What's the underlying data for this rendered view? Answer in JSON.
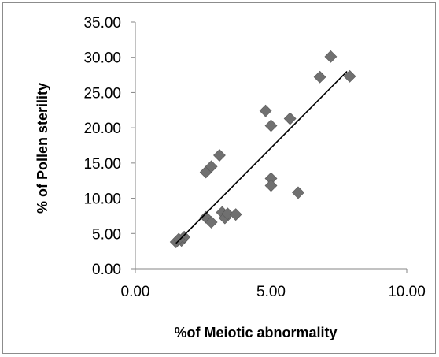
{
  "chart_data": {
    "type": "scatter",
    "title": "",
    "xlabel": "%of Meiotic abnormality",
    "ylabel": "% of Pollen sterility",
    "xlim": [
      0,
      10
    ],
    "ylim": [
      0,
      35
    ],
    "xticks": [
      "0.00",
      "5.00",
      "10.00"
    ],
    "yticks": [
      "0.00",
      "5.00",
      "10.00",
      "15.00",
      "20.00",
      "25.00",
      "30.00",
      "35.00"
    ],
    "grid": false,
    "legend": "none",
    "marker": "diamond",
    "marker_color": "#707070",
    "trendline": {
      "type": "linear",
      "x": [
        1.5,
        7.8
      ],
      "y": [
        3.6,
        28.0
      ],
      "color": "#000000"
    },
    "series": [
      {
        "points": [
          {
            "x": 1.5,
            "y": 3.8
          },
          {
            "x": 1.7,
            "y": 4.0
          },
          {
            "x": 1.8,
            "y": 4.5
          },
          {
            "x": 1.6,
            "y": 4.2
          },
          {
            "x": 2.6,
            "y": 7.3
          },
          {
            "x": 2.8,
            "y": 6.6
          },
          {
            "x": 3.2,
            "y": 8.0
          },
          {
            "x": 3.3,
            "y": 7.2
          },
          {
            "x": 3.4,
            "y": 7.8
          },
          {
            "x": 3.7,
            "y": 7.7
          },
          {
            "x": 2.6,
            "y": 13.7
          },
          {
            "x": 2.8,
            "y": 14.5
          },
          {
            "x": 3.1,
            "y": 16.1
          },
          {
            "x": 4.8,
            "y": 22.4
          },
          {
            "x": 5.0,
            "y": 20.3
          },
          {
            "x": 5.7,
            "y": 21.3
          },
          {
            "x": 5.0,
            "y": 12.8
          },
          {
            "x": 5.0,
            "y": 11.8
          },
          {
            "x": 6.0,
            "y": 10.8
          },
          {
            "x": 6.8,
            "y": 27.2
          },
          {
            "x": 7.2,
            "y": 30.1
          },
          {
            "x": 7.9,
            "y": 27.3
          }
        ]
      }
    ]
  }
}
